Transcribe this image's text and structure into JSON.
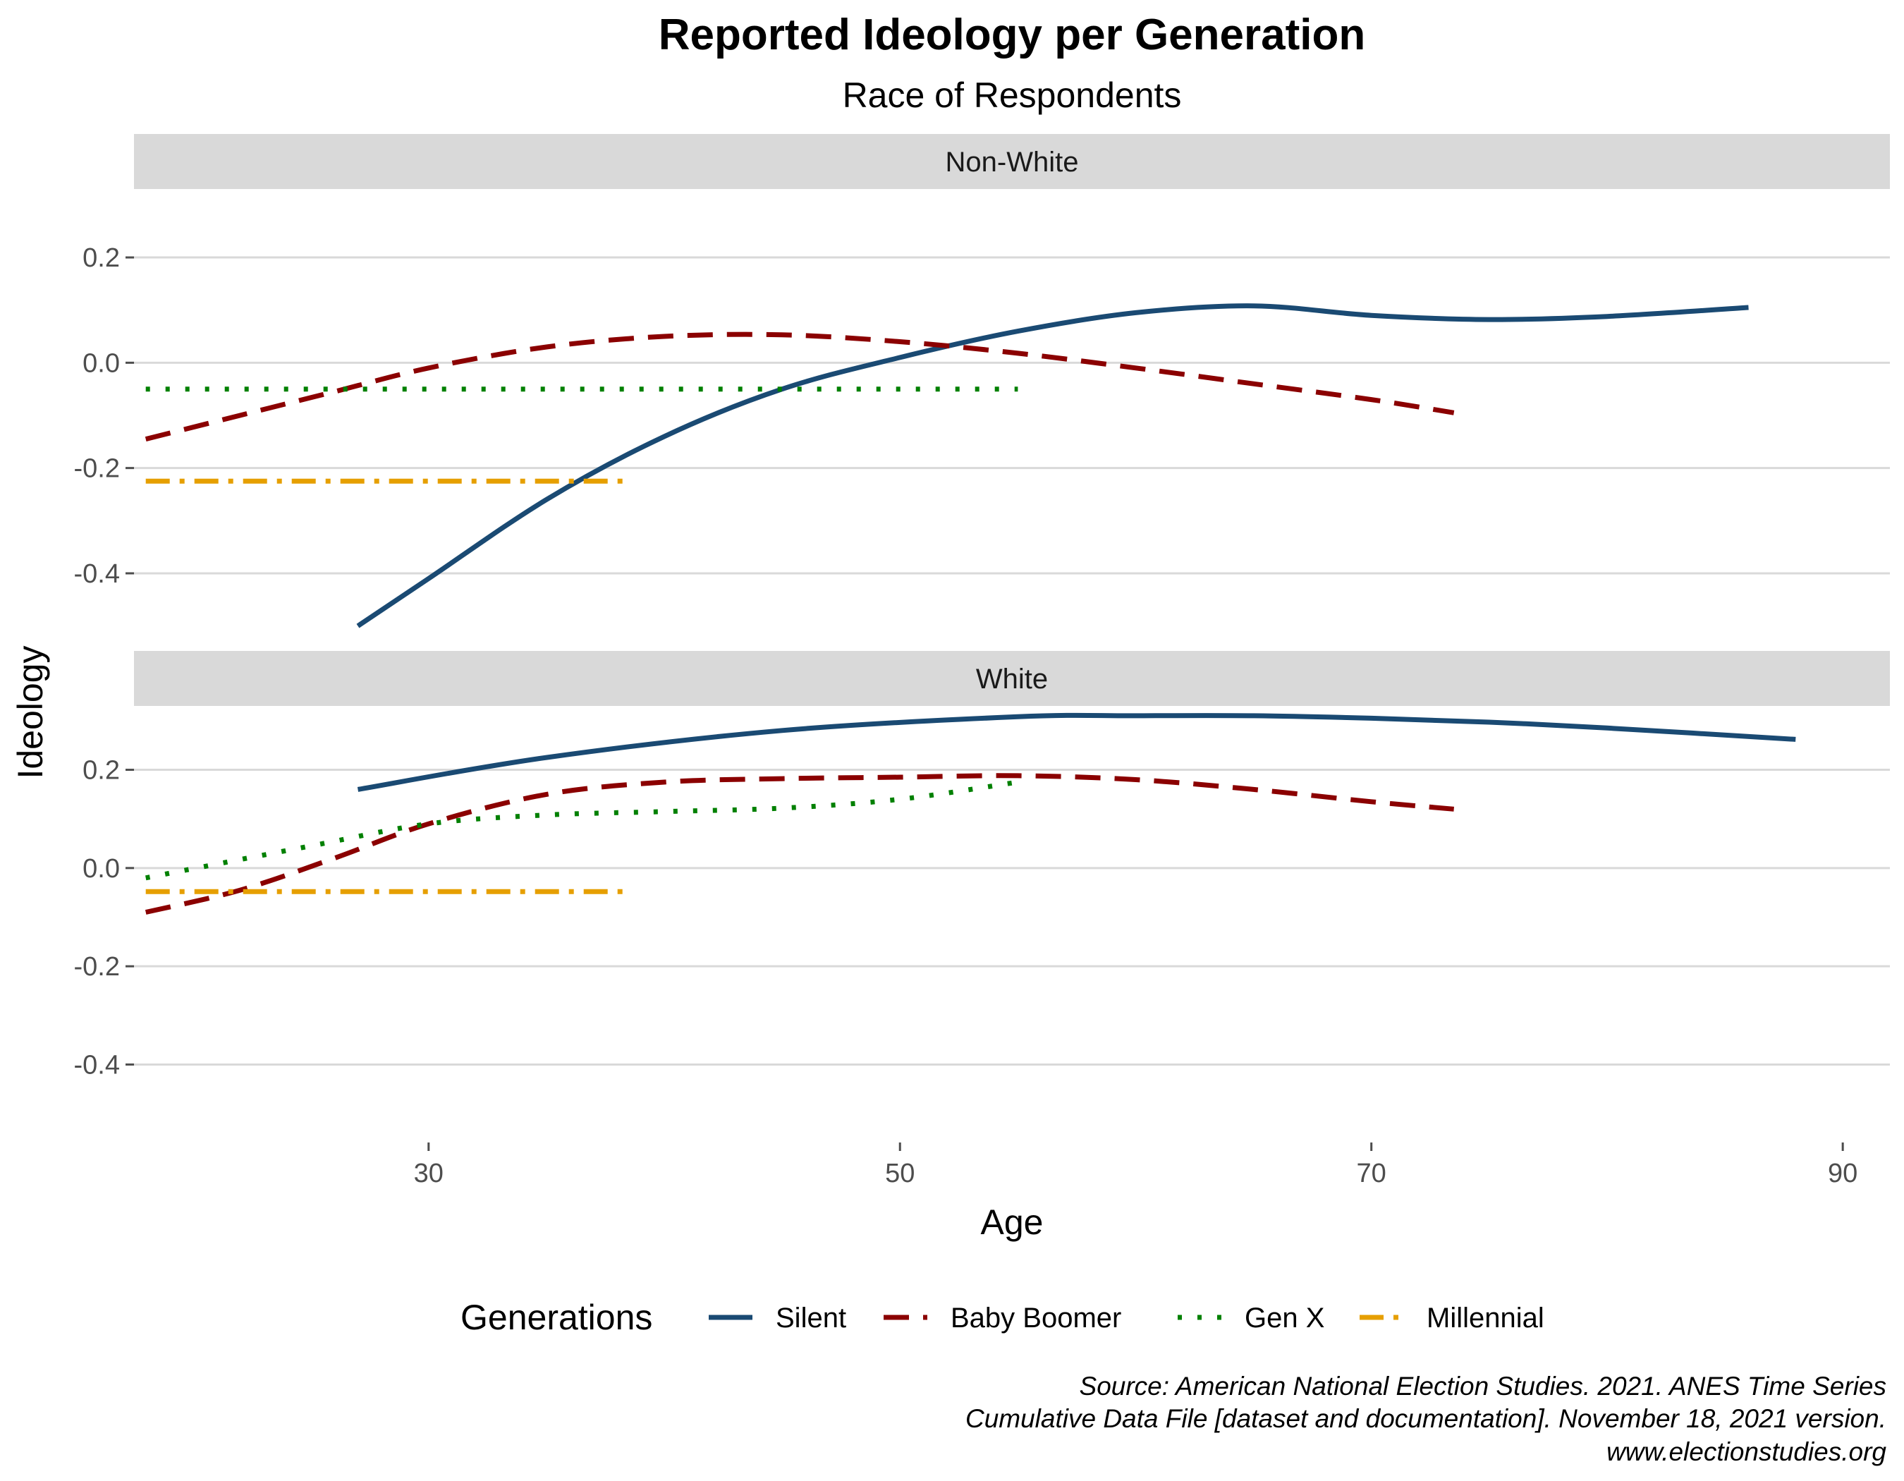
{
  "chart_data": {
    "type": "line",
    "title": "Reported Ideology per Generation",
    "subtitle": "Race of Respondents",
    "xlabel": "Age",
    "ylabel": "Ideology",
    "xlim": [
      17.5,
      92
    ],
    "ylim": [
      -0.53,
      0.33
    ],
    "x_ticks": [
      30,
      50,
      70,
      90
    ],
    "x_tick_labels": [
      "30",
      "50",
      "70",
      "90"
    ],
    "y_ticks": [
      -0.4,
      -0.2,
      0.0,
      0.2
    ],
    "y_tick_labels": [
      "-0.4",
      "-0.2",
      "0.0",
      "0.2"
    ],
    "grid": true,
    "legend": {
      "title": "Generations",
      "position": "bottom",
      "entries": [
        "Silent",
        "Baby Boomer",
        "Gen X",
        "Millennial"
      ]
    },
    "series_styles": {
      "Silent": {
        "color": "#1a4a73",
        "dash": "solid"
      },
      "Baby Boomer": {
        "color": "#8b0000",
        "dash": "longdash"
      },
      "Gen X": {
        "color": "#008000",
        "dash": "dotted"
      },
      "Millennial": {
        "color": "#e69f00",
        "dash": "dotdash"
      }
    },
    "panels": [
      {
        "label": "Non-White",
        "series": [
          {
            "name": "Silent",
            "x": [
              27,
              30,
              35,
              40,
              45,
              50,
              55,
              60,
              65,
              70,
              75,
              80,
              86
            ],
            "y": [
              -0.5,
              -0.41,
              -0.26,
              -0.14,
              -0.05,
              0.01,
              0.06,
              0.095,
              0.108,
              0.09,
              0.082,
              0.088,
              0.105
            ]
          },
          {
            "name": "Baby Boomer",
            "x": [
              18,
              22,
              26,
              30,
              35,
              40,
              45,
              50,
              55,
              60,
              65,
              70,
              73.5
            ],
            "y": [
              -0.145,
              -0.1,
              -0.055,
              -0.01,
              0.03,
              0.05,
              0.053,
              0.04,
              0.018,
              -0.01,
              -0.04,
              -0.07,
              -0.095
            ]
          },
          {
            "name": "Gen X",
            "x": [
              18,
              55
            ],
            "y": [
              -0.05,
              -0.05
            ]
          },
          {
            "name": "Millennial",
            "x": [
              18,
              38.5
            ],
            "y": [
              -0.225,
              -0.225
            ]
          }
        ]
      },
      {
        "label": "White",
        "series": [
          {
            "name": "Silent",
            "x": [
              27,
              35,
              45,
              55,
              60,
              65,
              70,
              75,
              80,
              88
            ],
            "y": [
              0.16,
              0.225,
              0.28,
              0.308,
              0.31,
              0.31,
              0.305,
              0.297,
              0.285,
              0.262
            ]
          },
          {
            "name": "Baby Boomer",
            "x": [
              18,
              22,
              26,
              30,
              35,
              40,
              45,
              50,
              55,
              60,
              65,
              70,
              73.5
            ],
            "y": [
              -0.09,
              -0.045,
              0.02,
              0.09,
              0.15,
              0.175,
              0.182,
              0.185,
              0.188,
              0.18,
              0.16,
              0.135,
              0.12
            ]
          },
          {
            "name": "Gen X",
            "x": [
              18,
              25,
              30,
              35,
              40,
              45,
              50,
              55
            ],
            "y": [
              -0.02,
              0.045,
              0.09,
              0.108,
              0.115,
              0.122,
              0.14,
              0.175
            ]
          },
          {
            "name": "Millennial",
            "x": [
              18,
              38.5
            ],
            "y": [
              -0.048,
              -0.048
            ]
          }
        ]
      }
    ]
  },
  "caption": {
    "line1": "Source: American National Election Studies. 2021. ANES Time Series",
    "line2": "Cumulative Data File [dataset and documentation]. November 18, 2021 version.",
    "line3": "www.electionstudies.org"
  }
}
